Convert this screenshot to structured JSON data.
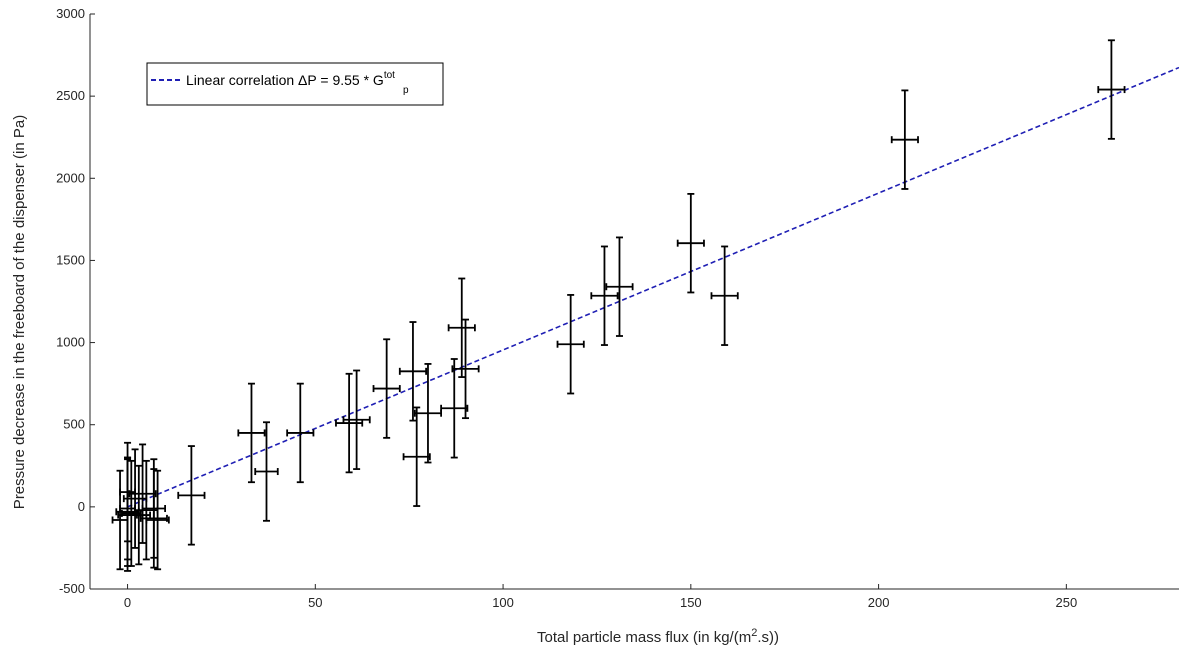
{
  "chart_data": {
    "type": "scatter",
    "xlabel_main": "Total particle mass flux (in kg/(m",
    "xlabel_sup": "2",
    "xlabel_end": ".s))",
    "ylabel": "Pressure decrease in the freeboard of the dispenser (in Pa)",
    "xlim": [
      -10,
      280
    ],
    "ylim": [
      -500,
      3000
    ],
    "xticks": [
      0,
      50,
      100,
      150,
      200,
      250
    ],
    "yticks": [
      -500,
      0,
      500,
      1000,
      1500,
      2000,
      2500,
      3000
    ],
    "grid": false,
    "legend_position": "top-left",
    "series": [
      {
        "name": "Linear correlation ΔP = 9.55 * G",
        "name_sub": "p",
        "name_sup": "tot",
        "type": "line",
        "style": "dashed",
        "color": "#1f1fb4",
        "slope": 9.55,
        "x": [
          0,
          280
        ],
        "y": [
          0,
          2674
        ]
      },
      {
        "type": "errorbar",
        "color": "#000000",
        "points": [
          {
            "x": -2,
            "y": -80,
            "xerr": 2,
            "yerr": 300
          },
          {
            "x": 0,
            "y": -50,
            "xerr": 2.5,
            "yerr": 340
          },
          {
            "x": 0,
            "y": -30,
            "xerr": 3,
            "yerr": 330
          },
          {
            "x": 0,
            "y": -10,
            "xerr": 2,
            "yerr": 310
          },
          {
            "x": 0,
            "y": 90,
            "xerr": 2,
            "yerr": 300
          },
          {
            "x": 1,
            "y": -40,
            "xerr": 2.5,
            "yerr": 320
          },
          {
            "x": 2,
            "y": 50,
            "xerr": 3,
            "yerr": 300
          },
          {
            "x": 3,
            "y": -50,
            "xerr": 3,
            "yerr": 300
          },
          {
            "x": 4,
            "y": 80,
            "xerr": 3.5,
            "yerr": 300
          },
          {
            "x": 5,
            "y": -20,
            "xerr": 3,
            "yerr": 300
          },
          {
            "x": 7,
            "y": -70,
            "xerr": 3.5,
            "yerr": 300
          },
          {
            "x": 7,
            "y": -10,
            "xerr": 3,
            "yerr": 300
          },
          {
            "x": 8,
            "y": -80,
            "xerr": 3,
            "yerr": 300
          },
          {
            "x": 17,
            "y": 70,
            "xerr": 3.5,
            "yerr": 300
          },
          {
            "x": 33,
            "y": 450,
            "xerr": 3.5,
            "yerr": 300
          },
          {
            "x": 37,
            "y": 215,
            "xerr": 3,
            "yerr": 300
          },
          {
            "x": 46,
            "y": 450,
            "xerr": 3.5,
            "yerr": 300
          },
          {
            "x": 59,
            "y": 510,
            "xerr": 3.5,
            "yerr": 300
          },
          {
            "x": 61,
            "y": 530,
            "xerr": 3.5,
            "yerr": 300
          },
          {
            "x": 69,
            "y": 720,
            "xerr": 3.5,
            "yerr": 300
          },
          {
            "x": 76,
            "y": 825,
            "xerr": 3.5,
            "yerr": 300
          },
          {
            "x": 77,
            "y": 305,
            "xerr": 3.5,
            "yerr": 300
          },
          {
            "x": 80,
            "y": 570,
            "xerr": 3.5,
            "yerr": 300
          },
          {
            "x": 87,
            "y": 600,
            "xerr": 3.5,
            "yerr": 300
          },
          {
            "x": 89,
            "y": 1090,
            "xerr": 3.5,
            "yerr": 300
          },
          {
            "x": 90,
            "y": 840,
            "xerr": 3.5,
            "yerr": 300
          },
          {
            "x": 118,
            "y": 990,
            "xerr": 3.5,
            "yerr": 300
          },
          {
            "x": 127,
            "y": 1285,
            "xerr": 3.5,
            "yerr": 300
          },
          {
            "x": 131,
            "y": 1340,
            "xerr": 3.5,
            "yerr": 300
          },
          {
            "x": 150,
            "y": 1605,
            "xerr": 3.5,
            "yerr": 300
          },
          {
            "x": 159,
            "y": 1285,
            "xerr": 3.5,
            "yerr": 300
          },
          {
            "x": 207,
            "y": 2235,
            "xerr": 3.5,
            "yerr": 300
          },
          {
            "x": 262,
            "y": 2540,
            "xerr": 3.5,
            "yerr": 300
          }
        ]
      }
    ]
  }
}
